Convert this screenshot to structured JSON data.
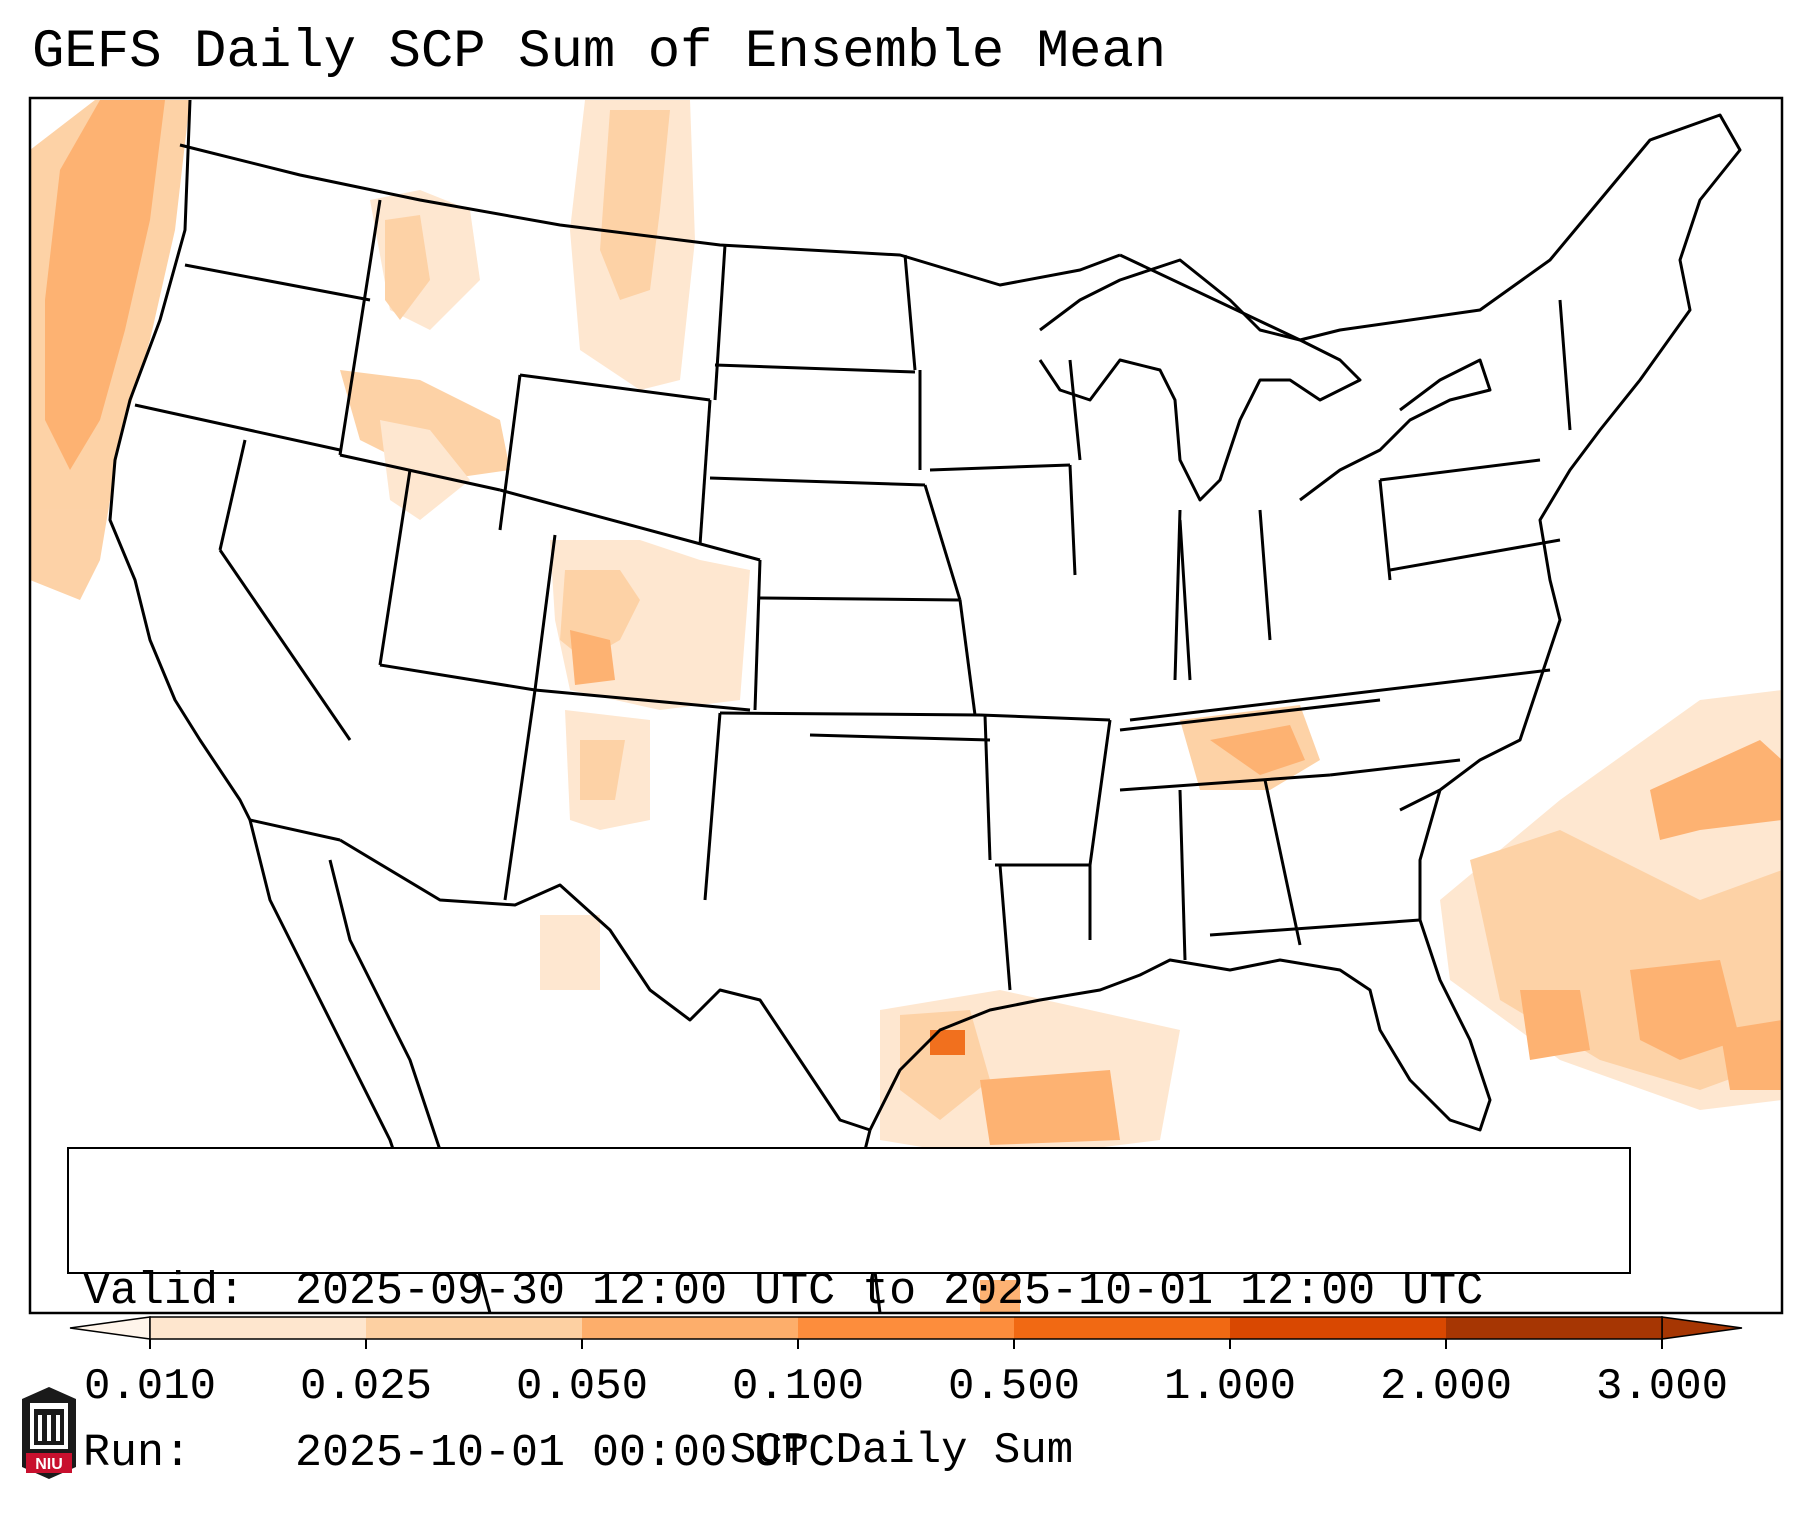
{
  "title": "GEFS Daily SCP Sum of Ensemble Mean",
  "info": {
    "valid_label": "Valid:",
    "valid_value": "2025-09-30 12:00 UTC to 2025-10-01 12:00 UTC",
    "run_label": "Run:",
    "run_value": "2025-10-01 00:00 UTC"
  },
  "colorbar": {
    "label": "SCP Daily Sum",
    "ticks": [
      "0.010",
      "0.025",
      "0.050",
      "0.100",
      "0.500",
      "1.000",
      "2.000",
      "3.000"
    ],
    "colors": [
      "#fff5eb",
      "#fee6ce",
      "#fdd0a2",
      "#fdae6b",
      "#fd8d3c",
      "#f16913",
      "#d94801",
      "#a63603"
    ],
    "extend": "both"
  },
  "logo": {
    "text": "NIU",
    "color": "#c8102e"
  },
  "map": {
    "region": "contiguous-united-states",
    "field": "SCP daily sum",
    "highlight_color": "#fdae6b"
  }
}
